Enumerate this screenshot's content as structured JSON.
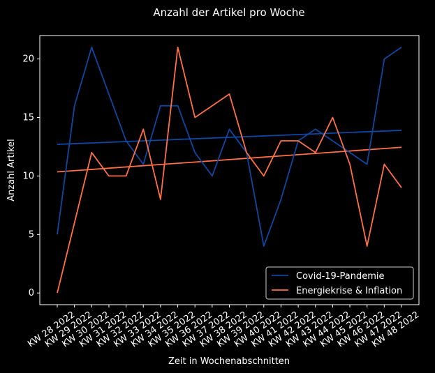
{
  "chart_data": {
    "type": "line",
    "title": "Anzahl der Artikel pro Woche",
    "xlabel": "Zeit in Wochenabschnitten",
    "ylabel": "Anzahl Artikel",
    "ylim": [
      -1,
      22
    ],
    "yticks": [
      0,
      5,
      10,
      15,
      20
    ],
    "grid": false,
    "legend_position": "lower right",
    "categories": [
      "KW 28 2022",
      "KW 29 2022",
      "KW 30 2022",
      "KW 31 2022",
      "KW 32 2022",
      "KW 33 2022",
      "KW 34 2022",
      "KW 35 2022",
      "KW 36 2022",
      "KW 37 2022",
      "KW 38 2022",
      "KW 39 2022",
      "KW 40 2022",
      "KW 41 2022",
      "KW 42 2022",
      "KW 43 2022",
      "KW 44 2022",
      "KW 45 2022",
      "KW 46 2022",
      "KW 47 2022",
      "KW 48 2022"
    ],
    "series": [
      {
        "name": "Covid-19-Pandemie",
        "color": "#0d47a1",
        "values": [
          5,
          16,
          21,
          17,
          13,
          11,
          16,
          16,
          12,
          10,
          14,
          12,
          4,
          8,
          13,
          14,
          13,
          12,
          11,
          20,
          21
        ],
        "trend": [
          12.7,
          13.9
        ]
      },
      {
        "name": "Energiekrise & Inflation",
        "color": "#ff7043",
        "values": [
          0,
          6,
          12,
          10,
          10,
          14,
          8,
          21,
          15,
          16,
          17,
          12,
          10,
          13,
          13,
          12,
          15,
          11,
          4,
          11,
          9
        ],
        "trend": [
          10.35,
          12.45
        ]
      }
    ]
  }
}
